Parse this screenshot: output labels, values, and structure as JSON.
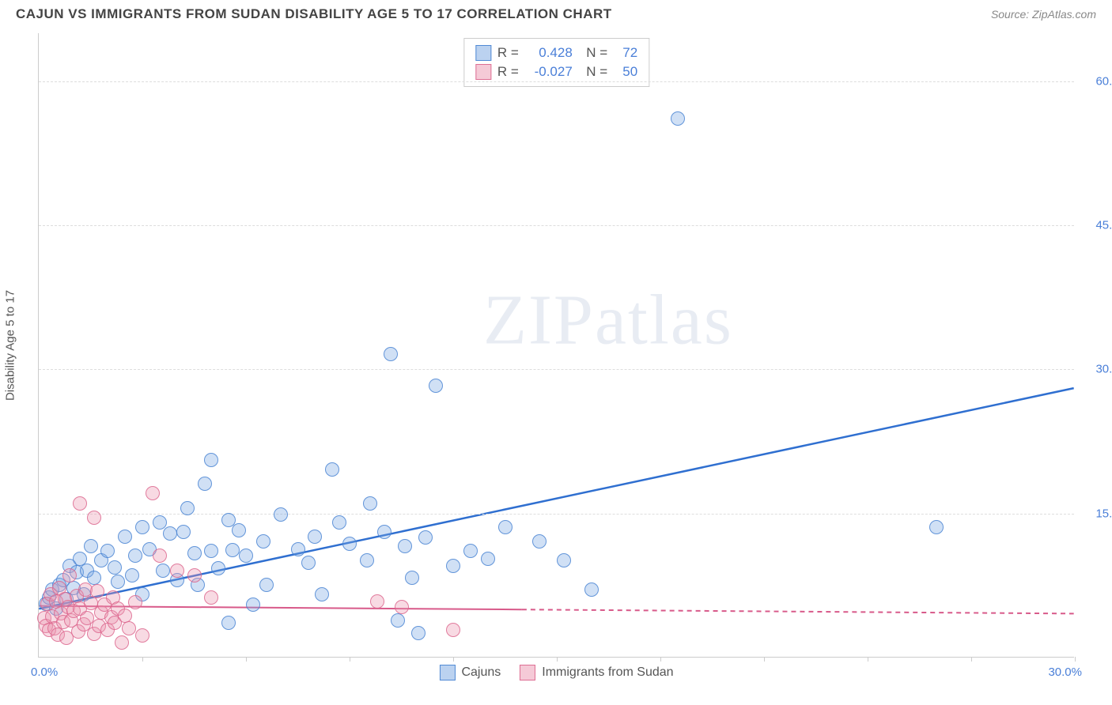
{
  "header": {
    "title": "CAJUN VS IMMIGRANTS FROM SUDAN DISABILITY AGE 5 TO 17 CORRELATION CHART",
    "source": "Source: ZipAtlas.com"
  },
  "watermark": "ZIPatlas",
  "chart": {
    "type": "scatter",
    "y_axis_title": "Disability Age 5 to 17",
    "xlim": [
      0,
      30
    ],
    "ylim": [
      0,
      65
    ],
    "x_origin_label": "0.0%",
    "x_max_label": "30.0%",
    "y_ticks": [
      {
        "v": 15,
        "label": "15.0%"
      },
      {
        "v": 30,
        "label": "30.0%"
      },
      {
        "v": 45,
        "label": "45.0%"
      },
      {
        "v": 60,
        "label": "60.0%"
      }
    ],
    "x_tick_positions": [
      3.0,
      6.0,
      9.0,
      12.0,
      15.0,
      18.0,
      21.0,
      24.0,
      27.0,
      30.0
    ],
    "background_color": "#ffffff",
    "grid_color": "#dddddd",
    "axis_color": "#cccccc",
    "series": [
      {
        "name": "Cajuns",
        "color_fill": "rgba(120,165,225,0.35)",
        "color_stroke": "rgba(70,130,210,0.8)",
        "marker_radius": 9,
        "r_value": "0.428",
        "n_value": "72",
        "trend": {
          "x1": 0,
          "y1": 5.0,
          "x2": 30,
          "y2": 28.0,
          "solid_until_x": 30,
          "color": "#2f6fd0",
          "width": 2.5
        },
        "points": [
          [
            0.2,
            5.5
          ],
          [
            0.3,
            6.2
          ],
          [
            0.4,
            7.0
          ],
          [
            0.5,
            5.0
          ],
          [
            0.6,
            7.5
          ],
          [
            0.7,
            8.0
          ],
          [
            0.8,
            6.0
          ],
          [
            0.9,
            9.5
          ],
          [
            1.0,
            7.2
          ],
          [
            1.1,
            8.8
          ],
          [
            1.2,
            10.2
          ],
          [
            1.3,
            6.5
          ],
          [
            1.4,
            9.0
          ],
          [
            1.5,
            11.5
          ],
          [
            1.6,
            8.2
          ],
          [
            1.8,
            10.0
          ],
          [
            2.0,
            11.0
          ],
          [
            2.2,
            9.3
          ],
          [
            2.3,
            7.8
          ],
          [
            2.5,
            12.5
          ],
          [
            2.7,
            8.5
          ],
          [
            2.8,
            10.5
          ],
          [
            3.0,
            13.5
          ],
          [
            3.0,
            6.5
          ],
          [
            3.2,
            11.2
          ],
          [
            3.5,
            14.0
          ],
          [
            3.6,
            9.0
          ],
          [
            3.8,
            12.8
          ],
          [
            4.0,
            8.0
          ],
          [
            4.2,
            13.0
          ],
          [
            4.3,
            15.5
          ],
          [
            4.5,
            10.8
          ],
          [
            4.6,
            7.5
          ],
          [
            4.8,
            18.0
          ],
          [
            5.0,
            11.0
          ],
          [
            5.0,
            20.5
          ],
          [
            5.2,
            9.2
          ],
          [
            5.5,
            14.2
          ],
          [
            5.5,
            3.5
          ],
          [
            5.6,
            11.1
          ],
          [
            5.8,
            13.2
          ],
          [
            6.0,
            10.5
          ],
          [
            6.2,
            5.4
          ],
          [
            6.5,
            12.0
          ],
          [
            6.6,
            7.5
          ],
          [
            7.0,
            14.8
          ],
          [
            7.5,
            11.2
          ],
          [
            7.8,
            9.8
          ],
          [
            8.0,
            12.5
          ],
          [
            8.2,
            6.5
          ],
          [
            8.5,
            19.5
          ],
          [
            8.7,
            14.0
          ],
          [
            9.0,
            11.8
          ],
          [
            9.5,
            10.0
          ],
          [
            9.6,
            16.0
          ],
          [
            10.0,
            13.0
          ],
          [
            10.2,
            31.5
          ],
          [
            10.4,
            3.8
          ],
          [
            10.6,
            11.5
          ],
          [
            10.8,
            8.2
          ],
          [
            11.0,
            2.5
          ],
          [
            11.2,
            12.4
          ],
          [
            11.5,
            28.2
          ],
          [
            12.0,
            9.5
          ],
          [
            12.5,
            11.0
          ],
          [
            13.0,
            10.2
          ],
          [
            13.5,
            13.5
          ],
          [
            14.5,
            12.0
          ],
          [
            15.2,
            10.0
          ],
          [
            16.0,
            7.0
          ],
          [
            18.5,
            56.0
          ],
          [
            26.0,
            13.5
          ]
        ]
      },
      {
        "name": "Immigrants from Sudan",
        "color_fill": "rgba(235,150,175,0.35)",
        "color_stroke": "rgba(220,100,140,0.8)",
        "marker_radius": 9,
        "r_value": "-0.027",
        "n_value": "50",
        "trend": {
          "x1": 0,
          "y1": 5.3,
          "x2": 30,
          "y2": 4.5,
          "solid_until_x": 14,
          "color": "#d85a8a",
          "width": 2
        },
        "points": [
          [
            0.15,
            4.0
          ],
          [
            0.2,
            3.2
          ],
          [
            0.25,
            5.5
          ],
          [
            0.3,
            2.8
          ],
          [
            0.35,
            6.5
          ],
          [
            0.4,
            4.2
          ],
          [
            0.45,
            3.0
          ],
          [
            0.5,
            5.8
          ],
          [
            0.55,
            2.3
          ],
          [
            0.6,
            7.2
          ],
          [
            0.65,
            4.5
          ],
          [
            0.7,
            3.6
          ],
          [
            0.75,
            6.0
          ],
          [
            0.8,
            2.0
          ],
          [
            0.85,
            5.2
          ],
          [
            0.9,
            8.5
          ],
          [
            0.95,
            3.8
          ],
          [
            1.0,
            4.8
          ],
          [
            1.1,
            6.3
          ],
          [
            1.15,
            2.6
          ],
          [
            1.2,
            5.0
          ],
          [
            1.3,
            3.4
          ],
          [
            1.35,
            7.0
          ],
          [
            1.4,
            4.0
          ],
          [
            1.5,
            5.6
          ],
          [
            1.6,
            2.4
          ],
          [
            1.7,
            6.8
          ],
          [
            1.75,
            3.2
          ],
          [
            1.8,
            4.6
          ],
          [
            1.9,
            5.4
          ],
          [
            2.0,
            2.8
          ],
          [
            2.1,
            4.1
          ],
          [
            2.15,
            6.2
          ],
          [
            2.2,
            3.5
          ],
          [
            2.3,
            5.0
          ],
          [
            2.4,
            1.5
          ],
          [
            2.5,
            4.3
          ],
          [
            2.6,
            3.0
          ],
          [
            2.8,
            5.7
          ],
          [
            3.0,
            2.2
          ],
          [
            1.2,
            16.0
          ],
          [
            1.6,
            14.5
          ],
          [
            3.3,
            17.0
          ],
          [
            3.5,
            10.5
          ],
          [
            4.0,
            9.0
          ],
          [
            4.5,
            8.5
          ],
          [
            5.0,
            6.2
          ],
          [
            9.8,
            5.8
          ],
          [
            10.5,
            5.2
          ],
          [
            12.0,
            2.8
          ]
        ]
      }
    ],
    "legend_bottom": [
      {
        "swatch": "blue",
        "label": "Cajuns"
      },
      {
        "swatch": "pink",
        "label": "Immigrants from Sudan"
      }
    ]
  }
}
